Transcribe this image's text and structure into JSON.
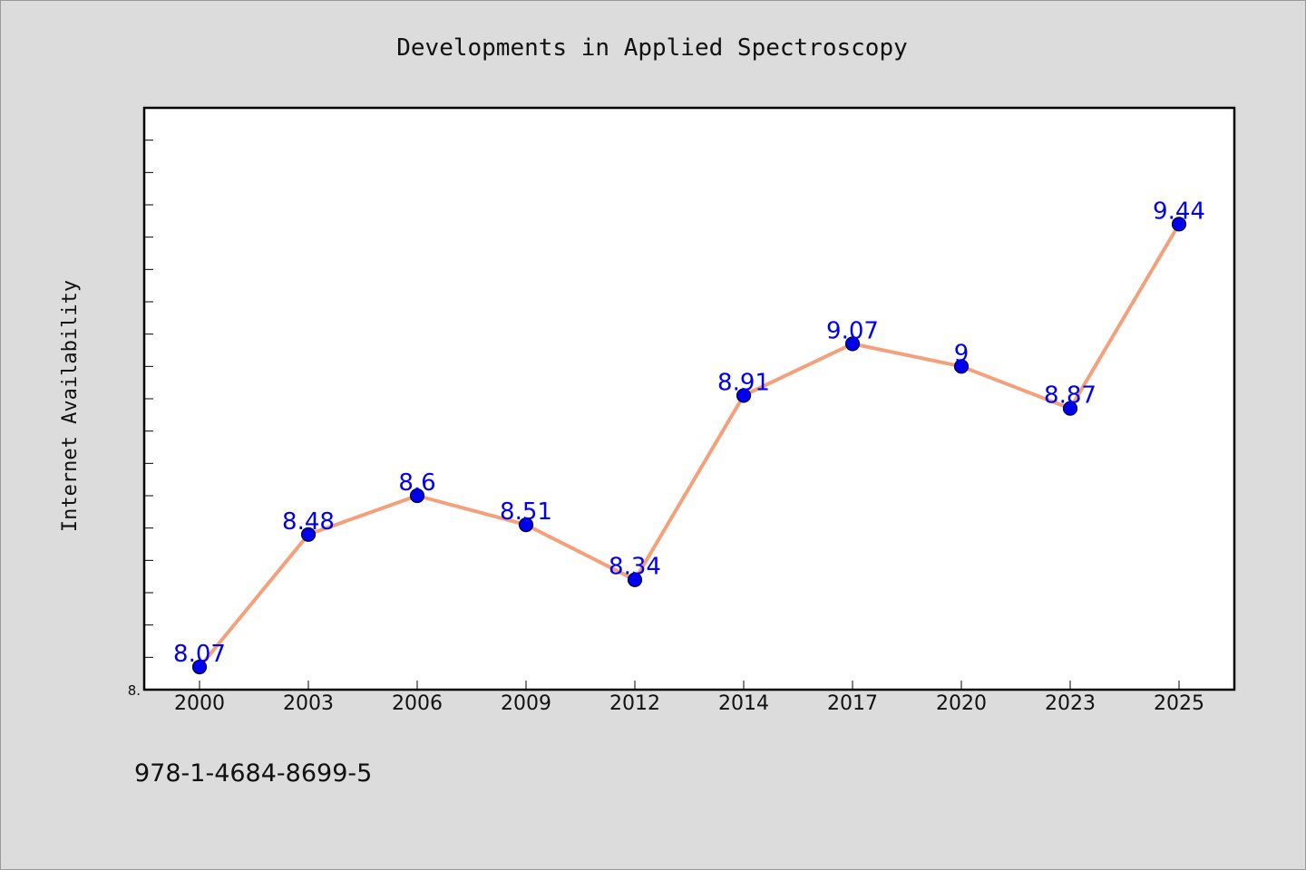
{
  "chart_data": {
    "type": "line",
    "title": "Developments in Applied Spectroscopy",
    "xlabel": "",
    "ylabel": "Internet Availability",
    "categories": [
      "2000",
      "2003",
      "2006",
      "2009",
      "2012",
      "2014",
      "2017",
      "2020",
      "2023",
      "2025"
    ],
    "series": [
      {
        "values": [
          8.07,
          8.48,
          8.6,
          8.51,
          8.34,
          8.91,
          9.07,
          9.0,
          8.87,
          9.44
        ],
        "data_labels": [
          "8.07",
          "8.48",
          "8.6",
          "8.51",
          "8.34",
          "8.91",
          "9.07",
          "9",
          "8.87",
          "9.44"
        ]
      }
    ],
    "ylim": [
      8.0,
      9.8
    ],
    "y_tick_step": 0.1,
    "y_tick_labels": [
      {
        "value": 8.0,
        "label": "8."
      }
    ],
    "grid": false,
    "legend": "none",
    "colors": {
      "line": "#f4a07a",
      "marker": "#0000ee",
      "marker_edge": "#000033",
      "data_label": "#0000ee",
      "plot_background": "#ffffff",
      "figure_background": "#dcdcdc"
    }
  },
  "footer": {
    "isbn": "978-1-4684-8699-5"
  }
}
